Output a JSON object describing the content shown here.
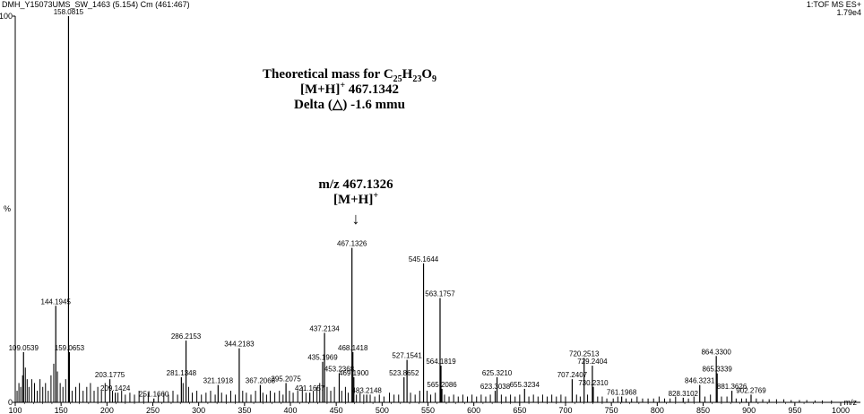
{
  "header": {
    "sample": "DMH_Y15073UMS_SW_1463 (5.154) Cm (461:467)",
    "mode": "1:TOF MS ES+",
    "intensity": "1.79e4"
  },
  "annotation_theoretical": {
    "line1_prefix": "Theoretical mass for C",
    "c_sub": "25",
    "h_label": "H",
    "h_sub": "23",
    "o_label": "O",
    "o_sub": "9",
    "line2_ion": "[M+H]",
    "line2_charge": "+",
    "line2_value": " 467.1342",
    "line3": "Delta (△) -1.6 mmu"
  },
  "annotation_peak": {
    "line1": "m/z 467.1326",
    "line2_ion": "[M+H]",
    "line2_charge": "+",
    "arrow": "↓"
  },
  "chart_data": {
    "type": "bar",
    "xlabel": "m/z",
    "ylabel": "%",
    "xlim": [
      100,
      1000
    ],
    "ylim": [
      0,
      100
    ],
    "x_ticks": [
      100,
      150,
      200,
      250,
      300,
      350,
      400,
      450,
      500,
      550,
      600,
      650,
      700,
      750,
      800,
      850,
      900,
      950,
      1000
    ],
    "y_ticks": [
      0,
      100
    ],
    "labeled_peaks": [
      {
        "x": 109.0539,
        "y": 13,
        "label": "109.0539"
      },
      {
        "x": 144.1945,
        "y": 25,
        "label": "144.1945"
      },
      {
        "x": 158.0815,
        "y": 100,
        "label": "158.0815"
      },
      {
        "x": 159.0653,
        "y": 13,
        "label": "159.0653"
      },
      {
        "x": 203.1775,
        "y": 6,
        "label": "203.1775"
      },
      {
        "x": 209.1424,
        "y": 2.5,
        "label": "209.1424"
      },
      {
        "x": 251.166,
        "y": 1,
        "label": "251.1660"
      },
      {
        "x": 281.1348,
        "y": 6.5,
        "label": "281.1348"
      },
      {
        "x": 286.2153,
        "y": 16,
        "label": "286.2153"
      },
      {
        "x": 321.1918,
        "y": 4.5,
        "label": "321.1918"
      },
      {
        "x": 344.2183,
        "y": 14,
        "label": "344.2183"
      },
      {
        "x": 367.2068,
        "y": 4.5,
        "label": "367.2068"
      },
      {
        "x": 395.2075,
        "y": 5,
        "label": "395.2075"
      },
      {
        "x": 421.1657,
        "y": 2.5,
        "label": "421.1657"
      },
      {
        "x": 435.1969,
        "y": 10.5,
        "label": "435.1969"
      },
      {
        "x": 437.2134,
        "y": 18,
        "label": "437.2134"
      },
      {
        "x": 453.2368,
        "y": 7.5,
        "label": "453.2368"
      },
      {
        "x": 467.1326,
        "y": 40,
        "label": "467.1326"
      },
      {
        "x": 468.1418,
        "y": 13,
        "label": "468.1418"
      },
      {
        "x": 469.19,
        "y": 6.5,
        "label": "469.1900"
      },
      {
        "x": 483.2148,
        "y": 2,
        "label": "483.2148"
      },
      {
        "x": 523.8652,
        "y": 6.5,
        "label": "523.8652"
      },
      {
        "x": 527.1541,
        "y": 11,
        "label": "527.1541"
      },
      {
        "x": 545.1644,
        "y": 36,
        "label": "545.1644"
      },
      {
        "x": 563.1757,
        "y": 27,
        "label": "563.1757"
      },
      {
        "x": 564.1819,
        "y": 9.5,
        "label": "564.1819"
      },
      {
        "x": 565.2086,
        "y": 3.5,
        "label": "565.2086"
      },
      {
        "x": 623.3038,
        "y": 3,
        "label": "623.3038"
      },
      {
        "x": 625.321,
        "y": 6.5,
        "label": "625.3210"
      },
      {
        "x": 655.3234,
        "y": 3.5,
        "label": "655.3234"
      },
      {
        "x": 707.2407,
        "y": 6,
        "label": "707.2407"
      },
      {
        "x": 720.2513,
        "y": 11.5,
        "label": "720.2513"
      },
      {
        "x": 729.2404,
        "y": 9.5,
        "label": "729.2404"
      },
      {
        "x": 730.231,
        "y": 4,
        "label": "730.2310"
      },
      {
        "x": 761.1968,
        "y": 1.5,
        "label": "761.1968"
      },
      {
        "x": 828.3102,
        "y": 1.2,
        "label": "828.3102"
      },
      {
        "x": 846.3231,
        "y": 4.5,
        "label": "846.3231"
      },
      {
        "x": 864.33,
        "y": 12,
        "label": "864.3300"
      },
      {
        "x": 865.3339,
        "y": 7.5,
        "label": "865.3339"
      },
      {
        "x": 881.3626,
        "y": 3,
        "label": "881.3626"
      },
      {
        "x": 902.2769,
        "y": 2,
        "label": "902.2769"
      }
    ],
    "minor_peaks": [
      {
        "x": 102,
        "y": 3
      },
      {
        "x": 104,
        "y": 5
      },
      {
        "x": 106,
        "y": 4
      },
      {
        "x": 108,
        "y": 7
      },
      {
        "x": 111,
        "y": 9
      },
      {
        "x": 113,
        "y": 6
      },
      {
        "x": 115,
        "y": 4
      },
      {
        "x": 118,
        "y": 6
      },
      {
        "x": 121,
        "y": 5
      },
      {
        "x": 124,
        "y": 3
      },
      {
        "x": 127,
        "y": 6
      },
      {
        "x": 130,
        "y": 4
      },
      {
        "x": 133,
        "y": 5
      },
      {
        "x": 136,
        "y": 3
      },
      {
        "x": 139,
        "y": 7
      },
      {
        "x": 142,
        "y": 10
      },
      {
        "x": 146,
        "y": 8
      },
      {
        "x": 149,
        "y": 5
      },
      {
        "x": 152,
        "y": 4
      },
      {
        "x": 155,
        "y": 6
      },
      {
        "x": 162,
        "y": 3
      },
      {
        "x": 166,
        "y": 4
      },
      {
        "x": 170,
        "y": 5
      },
      {
        "x": 174,
        "y": 3
      },
      {
        "x": 178,
        "y": 4
      },
      {
        "x": 182,
        "y": 5
      },
      {
        "x": 186,
        "y": 3
      },
      {
        "x": 190,
        "y": 4
      },
      {
        "x": 194,
        "y": 3
      },
      {
        "x": 198,
        "y": 5
      },
      {
        "x": 206,
        "y": 3
      },
      {
        "x": 212,
        "y": 2.5
      },
      {
        "x": 216,
        "y": 3
      },
      {
        "x": 220,
        "y": 2
      },
      {
        "x": 225,
        "y": 2.5
      },
      {
        "x": 230,
        "y": 2
      },
      {
        "x": 235,
        "y": 3
      },
      {
        "x": 240,
        "y": 2
      },
      {
        "x": 245,
        "y": 2.5
      },
      {
        "x": 256,
        "y": 2
      },
      {
        "x": 262,
        "y": 2.5
      },
      {
        "x": 267,
        "y": 2
      },
      {
        "x": 272,
        "y": 3
      },
      {
        "x": 277,
        "y": 2
      },
      {
        "x": 283,
        "y": 5
      },
      {
        "x": 289,
        "y": 4
      },
      {
        "x": 293,
        "y": 2.5
      },
      {
        "x": 298,
        "y": 3
      },
      {
        "x": 303,
        "y": 2
      },
      {
        "x": 308,
        "y": 2.5
      },
      {
        "x": 313,
        "y": 3
      },
      {
        "x": 318,
        "y": 2
      },
      {
        "x": 325,
        "y": 2.5
      },
      {
        "x": 330,
        "y": 2
      },
      {
        "x": 335,
        "y": 3
      },
      {
        "x": 340,
        "y": 2
      },
      {
        "x": 348,
        "y": 3
      },
      {
        "x": 352,
        "y": 2.5
      },
      {
        "x": 357,
        "y": 2
      },
      {
        "x": 362,
        "y": 3
      },
      {
        "x": 370,
        "y": 2.5
      },
      {
        "x": 374,
        "y": 2
      },
      {
        "x": 378,
        "y": 3
      },
      {
        "x": 383,
        "y": 2.5
      },
      {
        "x": 388,
        "y": 3
      },
      {
        "x": 392,
        "y": 2
      },
      {
        "x": 399,
        "y": 3
      },
      {
        "x": 403,
        "y": 2.5
      },
      {
        "x": 408,
        "y": 3
      },
      {
        "x": 413,
        "y": 4
      },
      {
        "x": 417,
        "y": 2.5
      },
      {
        "x": 425,
        "y": 3
      },
      {
        "x": 429,
        "y": 4
      },
      {
        "x": 432,
        "y": 5
      },
      {
        "x": 440,
        "y": 4
      },
      {
        "x": 444,
        "y": 3
      },
      {
        "x": 448,
        "y": 4
      },
      {
        "x": 456,
        "y": 3
      },
      {
        "x": 460,
        "y": 4
      },
      {
        "x": 463,
        "y": 2.5
      },
      {
        "x": 472,
        "y": 2
      },
      {
        "x": 476,
        "y": 2.5
      },
      {
        "x": 480,
        "y": 2
      },
      {
        "x": 487,
        "y": 2
      },
      {
        "x": 492,
        "y": 1.5
      },
      {
        "x": 497,
        "y": 2
      },
      {
        "x": 502,
        "y": 1.5
      },
      {
        "x": 508,
        "y": 2.5
      },
      {
        "x": 513,
        "y": 2
      },
      {
        "x": 518,
        "y": 2
      },
      {
        "x": 531,
        "y": 2.5
      },
      {
        "x": 536,
        "y": 2
      },
      {
        "x": 541,
        "y": 3
      },
      {
        "x": 549,
        "y": 3
      },
      {
        "x": 553,
        "y": 2
      },
      {
        "x": 558,
        "y": 2.5
      },
      {
        "x": 568,
        "y": 2
      },
      {
        "x": 573,
        "y": 1.5
      },
      {
        "x": 578,
        "y": 2
      },
      {
        "x": 583,
        "y": 1.5
      },
      {
        "x": 588,
        "y": 2
      },
      {
        "x": 593,
        "y": 1.5
      },
      {
        "x": 598,
        "y": 2
      },
      {
        "x": 603,
        "y": 1.5
      },
      {
        "x": 608,
        "y": 2
      },
      {
        "x": 613,
        "y": 1.5
      },
      {
        "x": 618,
        "y": 2
      },
      {
        "x": 630,
        "y": 2
      },
      {
        "x": 635,
        "y": 1.5
      },
      {
        "x": 640,
        "y": 2
      },
      {
        "x": 645,
        "y": 1.5
      },
      {
        "x": 650,
        "y": 2
      },
      {
        "x": 660,
        "y": 1.5
      },
      {
        "x": 665,
        "y": 2
      },
      {
        "x": 670,
        "y": 1.5
      },
      {
        "x": 675,
        "y": 2
      },
      {
        "x": 680,
        "y": 1.5
      },
      {
        "x": 685,
        "y": 2
      },
      {
        "x": 690,
        "y": 1.5
      },
      {
        "x": 695,
        "y": 2
      },
      {
        "x": 700,
        "y": 1.5
      },
      {
        "x": 712,
        "y": 2
      },
      {
        "x": 716,
        "y": 1.5
      },
      {
        "x": 724,
        "y": 2
      },
      {
        "x": 735,
        "y": 1.5
      },
      {
        "x": 740,
        "y": 1.5
      },
      {
        "x": 745,
        "y": 1
      },
      {
        "x": 752,
        "y": 1
      },
      {
        "x": 757,
        "y": 1.5
      },
      {
        "x": 766,
        "y": 1
      },
      {
        "x": 772,
        "y": 1
      },
      {
        "x": 778,
        "y": 1.5
      },
      {
        "x": 784,
        "y": 1
      },
      {
        "x": 790,
        "y": 1
      },
      {
        "x": 796,
        "y": 1
      },
      {
        "x": 802,
        "y": 1.5
      },
      {
        "x": 808,
        "y": 1
      },
      {
        "x": 814,
        "y": 1
      },
      {
        "x": 820,
        "y": 1.5
      },
      {
        "x": 834,
        "y": 1
      },
      {
        "x": 840,
        "y": 1.5
      },
      {
        "x": 852,
        "y": 1.5
      },
      {
        "x": 858,
        "y": 2
      },
      {
        "x": 870,
        "y": 1.5
      },
      {
        "x": 876,
        "y": 1.5
      },
      {
        "x": 886,
        "y": 1
      },
      {
        "x": 892,
        "y": 1
      },
      {
        "x": 897,
        "y": 1
      },
      {
        "x": 908,
        "y": 1
      },
      {
        "x": 915,
        "y": 0.8
      },
      {
        "x": 922,
        "y": 0.8
      },
      {
        "x": 930,
        "y": 0.8
      },
      {
        "x": 938,
        "y": 0.8
      },
      {
        "x": 946,
        "y": 0.6
      },
      {
        "x": 955,
        "y": 0.6
      },
      {
        "x": 963,
        "y": 0.6
      },
      {
        "x": 972,
        "y": 0.5
      },
      {
        "x": 980,
        "y": 0.5
      },
      {
        "x": 990,
        "y": 0.5
      }
    ]
  }
}
